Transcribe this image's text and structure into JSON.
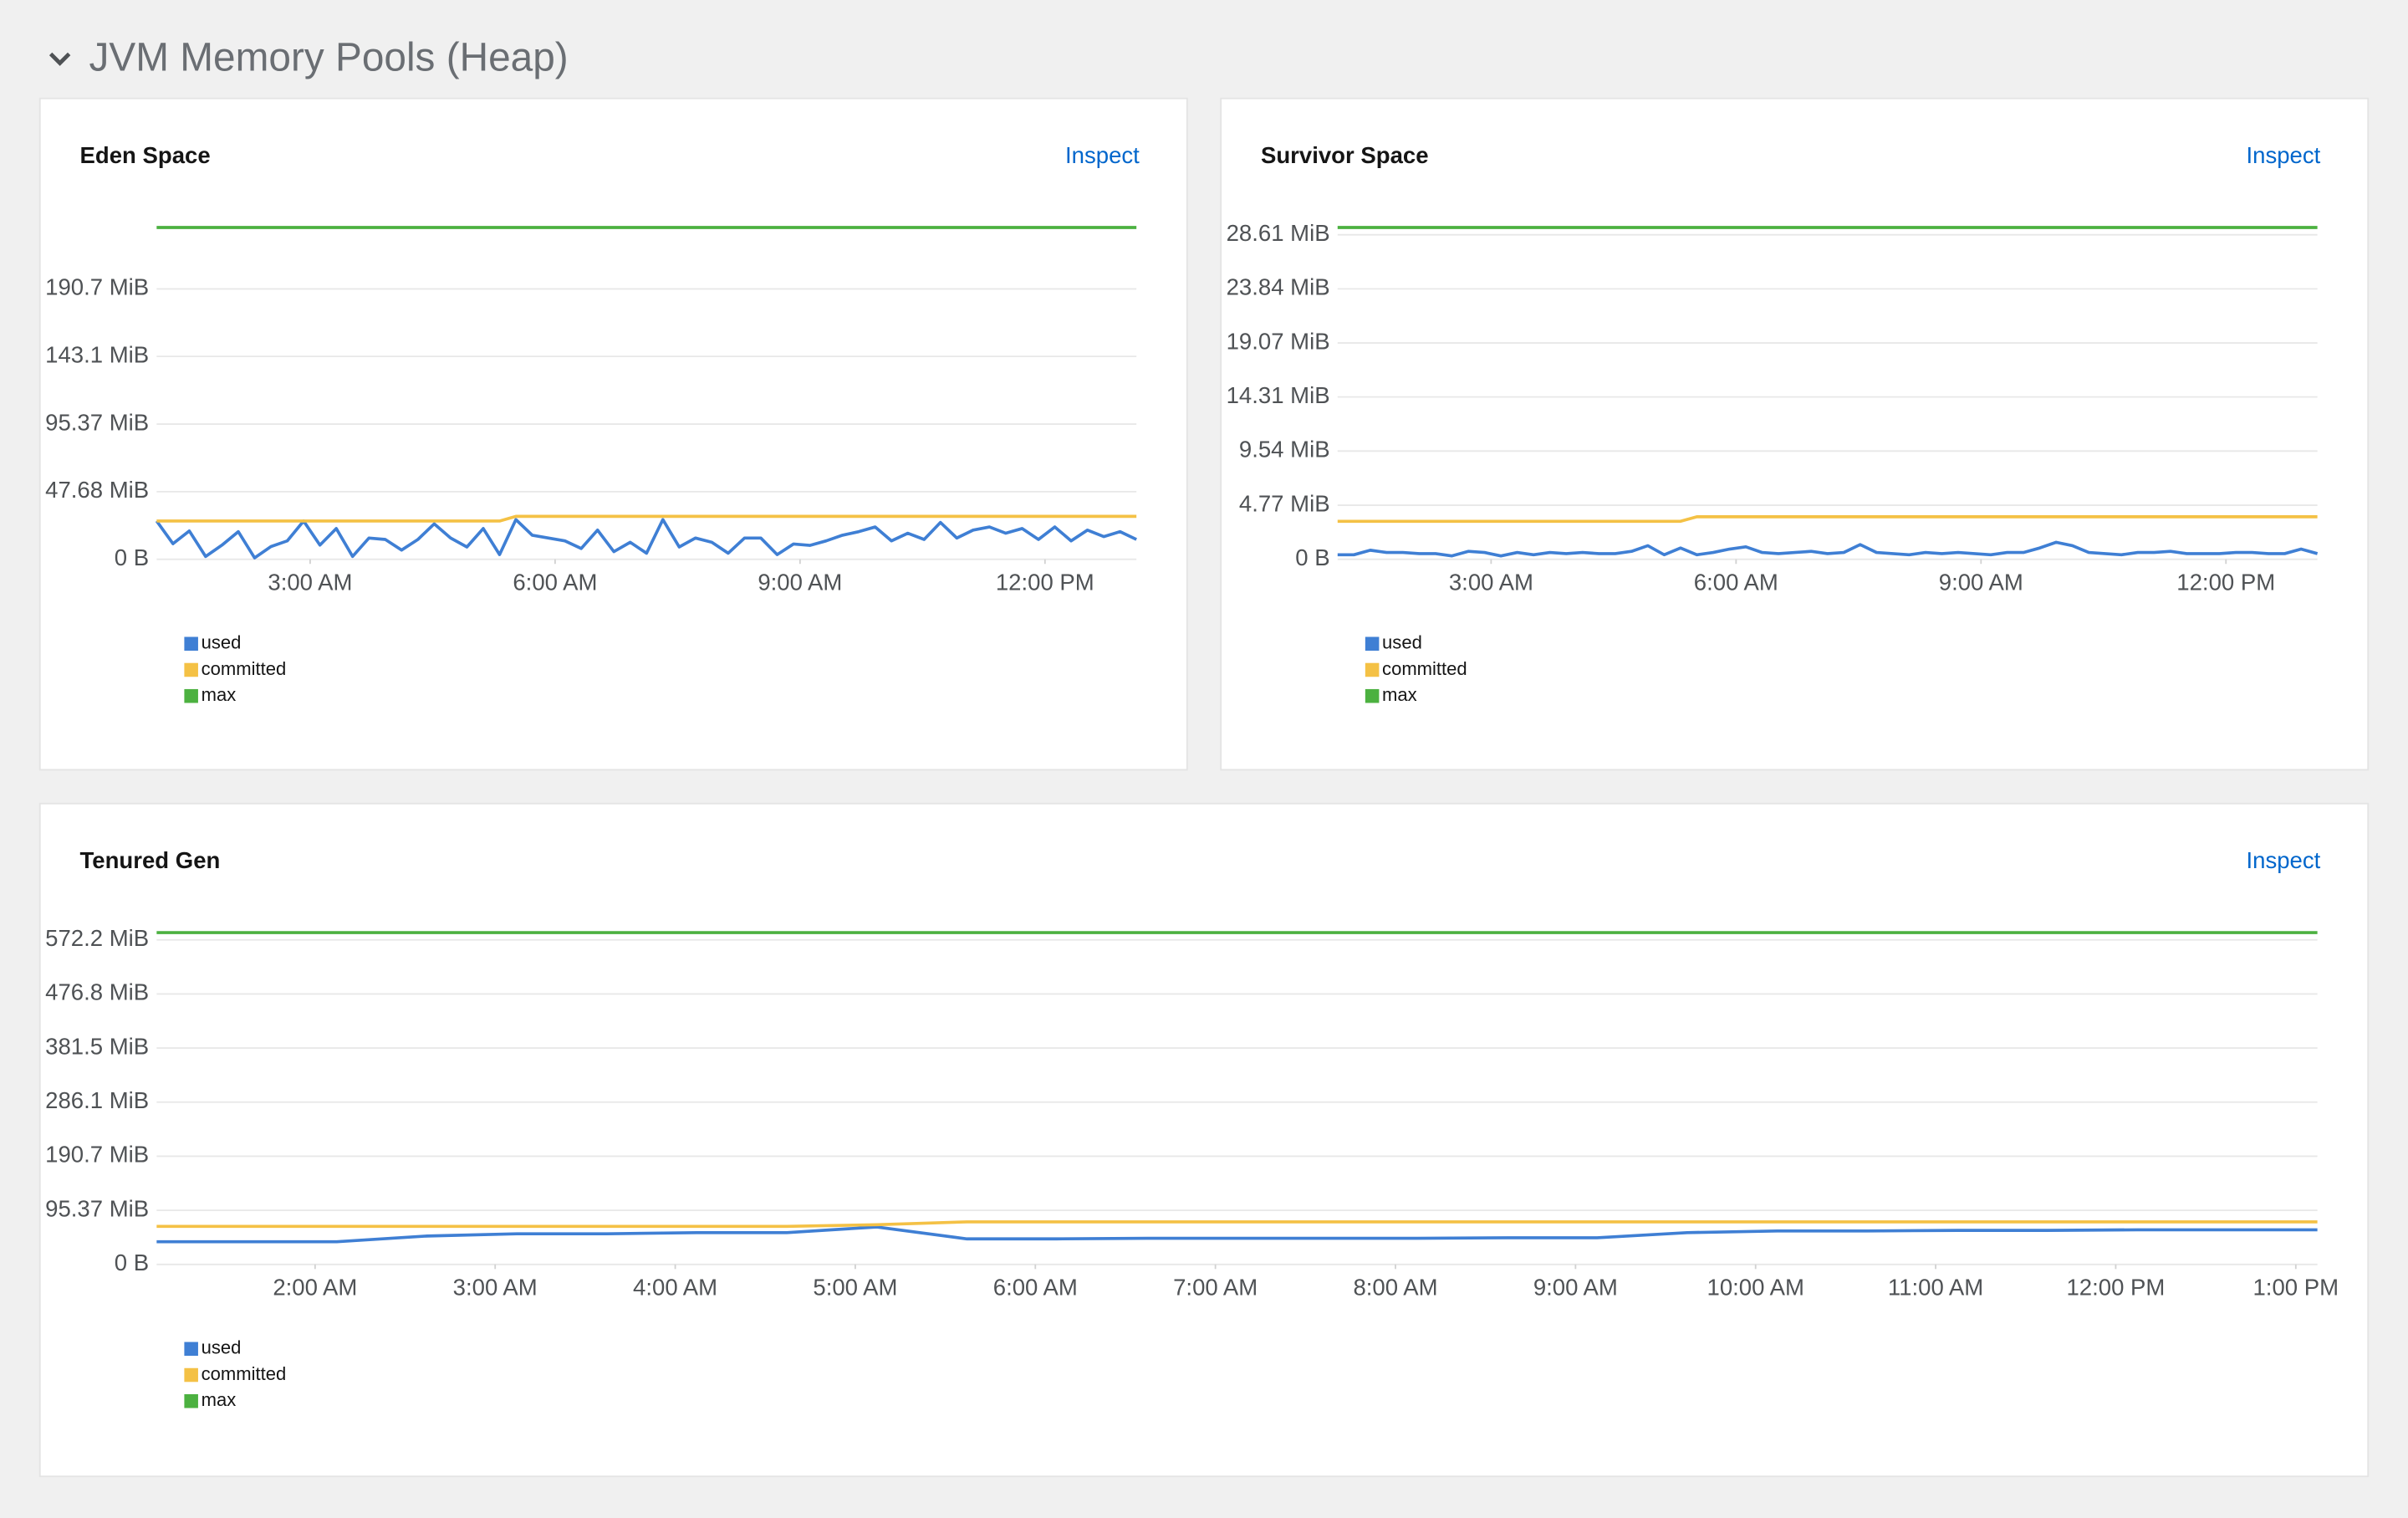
{
  "header": {
    "title": "JVM Memory Pools (Heap)"
  },
  "chart_data": [
    {
      "type": "line",
      "title": "Eden Space",
      "action": "Inspect",
      "x": [
        1.12,
        1.32,
        1.52,
        1.72,
        1.92,
        2.12,
        2.32,
        2.52,
        2.72,
        2.92,
        3.12,
        3.32,
        3.52,
        3.72,
        3.92,
        4.12,
        4.32,
        4.52,
        4.72,
        4.92,
        5.12,
        5.32,
        5.52,
        5.72,
        5.92,
        6.12,
        6.32,
        6.52,
        6.72,
        6.92,
        7.12,
        7.32,
        7.52,
        7.72,
        7.92,
        8.12,
        8.32,
        8.52,
        8.72,
        8.92,
        9.12,
        9.32,
        9.52,
        9.72,
        9.92,
        10.12,
        10.32,
        10.52,
        10.72,
        10.92,
        11.12,
        11.32,
        11.52,
        11.72,
        11.92,
        12.12,
        12.32,
        12.52,
        12.72,
        12.92,
        13.12
      ],
      "xlim": [
        1.12,
        13.12
      ],
      "xticks": [
        {
          "value": 3,
          "label": "3:00 AM"
        },
        {
          "value": 6,
          "label": "6:00 AM"
        },
        {
          "value": 9,
          "label": "9:00 AM"
        },
        {
          "value": 12,
          "label": "12:00 PM"
        }
      ],
      "ylim": [
        0,
        234
      ],
      "yticks": [
        {
          "value": 0,
          "label": "0 B"
        },
        {
          "value": 47.68,
          "label": "47.68 MiB"
        },
        {
          "value": 95.37,
          "label": "95.37 MiB"
        },
        {
          "value": 143.1,
          "label": "143.1 MiB"
        },
        {
          "value": 190.7,
          "label": "190.7 MiB"
        }
      ],
      "grid": true,
      "series": [
        {
          "name": "used",
          "color": "#3f7fd4",
          "values": [
            27,
            11,
            20,
            2,
            10,
            19.5,
            1,
            9,
            13,
            27,
            10,
            21.7,
            2,
            15,
            14,
            6.5,
            14,
            25,
            15,
            8.7,
            21.7,
            3.3,
            28,
            17,
            15,
            13,
            7.6,
            20.6,
            5.4,
            12,
            4.3,
            28,
            8.7,
            15,
            12,
            4.3,
            15,
            15,
            3.3,
            10.8,
            9.8,
            13,
            17,
            19.5,
            22.8,
            13,
            18.4,
            14,
            26,
            15,
            20.6,
            22.8,
            18.4,
            21.7,
            14,
            22.8,
            13,
            20.6,
            16,
            19.5,
            14
          ]
        },
        {
          "name": "committed",
          "color": "#f4c145",
          "values": [
            27,
            27,
            27,
            27,
            27,
            27,
            27,
            27,
            27,
            27,
            27,
            27,
            27,
            27,
            27,
            27,
            27,
            27,
            27,
            27,
            27,
            27,
            30.3,
            30.3,
            30.3,
            30.3,
            30.3,
            30.3,
            30.3,
            30.3,
            30.3,
            30.3,
            30.3,
            30.3,
            30.3,
            30.3,
            30.3,
            30.3,
            30.3,
            30.3,
            30.3,
            30.3,
            30.3,
            30.3,
            30.3,
            30.3,
            30.3,
            30.3,
            30.3,
            30.3,
            30.3,
            30.3,
            30.3,
            30.3,
            30.3,
            30.3,
            30.3,
            30.3,
            30.3,
            30.3,
            30.3
          ]
        },
        {
          "name": "max",
          "color": "#4cb140",
          "values": [
            234,
            234,
            234,
            234,
            234,
            234,
            234,
            234,
            234,
            234,
            234,
            234,
            234,
            234,
            234,
            234,
            234,
            234,
            234,
            234,
            234,
            234,
            234,
            234,
            234,
            234,
            234,
            234,
            234,
            234,
            234,
            234,
            234,
            234,
            234,
            234,
            234,
            234,
            234,
            234,
            234,
            234,
            234,
            234,
            234,
            234,
            234,
            234,
            234,
            234,
            234,
            234,
            234,
            234,
            234,
            234,
            234,
            234,
            234,
            234,
            234
          ]
        }
      ]
    },
    {
      "type": "line",
      "title": "Survivor Space",
      "action": "Inspect",
      "x": [
        1.12,
        1.32,
        1.52,
        1.72,
        1.92,
        2.12,
        2.32,
        2.52,
        2.72,
        2.92,
        3.12,
        3.32,
        3.52,
        3.72,
        3.92,
        4.12,
        4.32,
        4.52,
        4.72,
        4.92,
        5.12,
        5.32,
        5.52,
        5.72,
        5.92,
        6.12,
        6.32,
        6.52,
        6.72,
        6.92,
        7.12,
        7.32,
        7.52,
        7.72,
        7.92,
        8.12,
        8.32,
        8.52,
        8.72,
        8.92,
        9.12,
        9.32,
        9.52,
        9.72,
        9.92,
        10.12,
        10.32,
        10.52,
        10.72,
        10.92,
        11.12,
        11.32,
        11.52,
        11.72,
        11.92,
        12.12,
        12.32,
        12.52,
        12.72,
        12.92,
        13.12
      ],
      "xlim": [
        1.12,
        13.12
      ],
      "xticks": [
        {
          "value": 3,
          "label": "3:00 AM"
        },
        {
          "value": 6,
          "label": "6:00 AM"
        },
        {
          "value": 9,
          "label": "9:00 AM"
        },
        {
          "value": 12,
          "label": "12:00 PM"
        }
      ],
      "ylim": [
        0,
        29.25
      ],
      "yticks": [
        {
          "value": 0,
          "label": "0 B"
        },
        {
          "value": 4.77,
          "label": "4.77 MiB"
        },
        {
          "value": 9.54,
          "label": "9.54 MiB"
        },
        {
          "value": 14.31,
          "label": "14.31 MiB"
        },
        {
          "value": 19.07,
          "label": "19.07 MiB"
        },
        {
          "value": 23.84,
          "label": "23.84 MiB"
        },
        {
          "value": 28.61,
          "label": "28.61 MiB"
        }
      ],
      "grid": true,
      "series": [
        {
          "name": "used",
          "color": "#3f7fd4",
          "values": [
            0.4,
            0.4,
            0.8,
            0.6,
            0.6,
            0.5,
            0.5,
            0.3,
            0.7,
            0.6,
            0.3,
            0.6,
            0.4,
            0.6,
            0.5,
            0.6,
            0.5,
            0.5,
            0.7,
            1.2,
            0.4,
            1.0,
            0.4,
            0.6,
            0.9,
            1.1,
            0.6,
            0.5,
            0.6,
            0.7,
            0.5,
            0.6,
            1.3,
            0.6,
            0.5,
            0.4,
            0.6,
            0.5,
            0.6,
            0.5,
            0.4,
            0.6,
            0.6,
            1.0,
            1.5,
            1.2,
            0.6,
            0.5,
            0.4,
            0.6,
            0.6,
            0.7,
            0.5,
            0.5,
            0.5,
            0.6,
            0.6,
            0.5,
            0.5,
            0.9,
            0.5
          ]
        },
        {
          "name": "committed",
          "color": "#f4c145",
          "values": [
            3.35,
            3.35,
            3.35,
            3.35,
            3.35,
            3.35,
            3.35,
            3.35,
            3.35,
            3.35,
            3.35,
            3.35,
            3.35,
            3.35,
            3.35,
            3.35,
            3.35,
            3.35,
            3.35,
            3.35,
            3.35,
            3.35,
            3.75,
            3.75,
            3.75,
            3.75,
            3.75,
            3.75,
            3.75,
            3.75,
            3.75,
            3.75,
            3.75,
            3.75,
            3.75,
            3.75,
            3.75,
            3.75,
            3.75,
            3.75,
            3.75,
            3.75,
            3.75,
            3.75,
            3.75,
            3.75,
            3.75,
            3.75,
            3.75,
            3.75,
            3.75,
            3.75,
            3.75,
            3.75,
            3.75,
            3.75,
            3.75,
            3.75,
            3.75,
            3.75,
            3.75
          ]
        },
        {
          "name": "max",
          "color": "#4cb140",
          "values": [
            29.25,
            29.25,
            29.25,
            29.25,
            29.25,
            29.25,
            29.25,
            29.25,
            29.25,
            29.25,
            29.25,
            29.25,
            29.25,
            29.25,
            29.25,
            29.25,
            29.25,
            29.25,
            29.25,
            29.25,
            29.25,
            29.25,
            29.25,
            29.25,
            29.25,
            29.25,
            29.25,
            29.25,
            29.25,
            29.25,
            29.25,
            29.25,
            29.25,
            29.25,
            29.25,
            29.25,
            29.25,
            29.25,
            29.25,
            29.25,
            29.25,
            29.25,
            29.25,
            29.25,
            29.25,
            29.25,
            29.25,
            29.25,
            29.25,
            29.25,
            29.25,
            29.25,
            29.25,
            29.25,
            29.25,
            29.25,
            29.25,
            29.25,
            29.25,
            29.25,
            29.25
          ]
        }
      ]
    },
    {
      "type": "line",
      "title": "Tenured Gen",
      "action": "Inspect",
      "x": [
        1.12,
        1.62,
        2.12,
        2.62,
        3.12,
        3.62,
        4.12,
        4.62,
        5.12,
        5.62,
        6.12,
        6.62,
        7.12,
        7.62,
        8.12,
        8.62,
        9.12,
        9.62,
        10.12,
        10.62,
        11.12,
        11.62,
        12.12,
        12.62,
        13.12
      ],
      "xlim": [
        1.12,
        13.12
      ],
      "xticks": [
        {
          "value": 2,
          "label": "2:00 AM"
        },
        {
          "value": 3,
          "label": "3:00 AM"
        },
        {
          "value": 4,
          "label": "4:00 AM"
        },
        {
          "value": 5,
          "label": "5:00 AM"
        },
        {
          "value": 6,
          "label": "6:00 AM"
        },
        {
          "value": 7,
          "label": "7:00 AM"
        },
        {
          "value": 8,
          "label": "8:00 AM"
        },
        {
          "value": 9,
          "label": "9:00 AM"
        },
        {
          "value": 10,
          "label": "10:00 AM"
        },
        {
          "value": 11,
          "label": "11:00 AM"
        },
        {
          "value": 12,
          "label": "12:00 PM"
        },
        {
          "value": 13,
          "label": "1:00 PM"
        }
      ],
      "ylim": [
        0,
        585
      ],
      "yticks": [
        {
          "value": 0,
          "label": "0 B"
        },
        {
          "value": 95.37,
          "label": "95.37 MiB"
        },
        {
          "value": 190.7,
          "label": "190.7 MiB"
        },
        {
          "value": 286.1,
          "label": "286.1 MiB"
        },
        {
          "value": 381.5,
          "label": "381.5 MiB"
        },
        {
          "value": 476.8,
          "label": "476.8 MiB"
        },
        {
          "value": 572.2,
          "label": "572.2 MiB"
        }
      ],
      "grid": true,
      "series": [
        {
          "name": "used",
          "color": "#3f7fd4",
          "values": [
            40,
            40,
            40,
            50,
            54,
            54,
            56,
            56,
            66,
            45,
            45,
            46,
            46,
            46,
            46,
            47,
            47,
            56,
            59,
            59,
            60,
            60,
            61,
            61,
            61
          ]
        },
        {
          "name": "committed",
          "color": "#f4c145",
          "values": [
            67,
            67,
            67,
            67,
            67,
            67,
            67,
            67,
            70,
            75,
            75,
            75,
            75,
            75,
            75,
            75,
            75,
            75,
            75,
            75,
            75,
            75,
            75,
            75,
            75
          ]
        },
        {
          "name": "max",
          "color": "#4cb140",
          "values": [
            585,
            585,
            585,
            585,
            585,
            585,
            585,
            585,
            585,
            585,
            585,
            585,
            585,
            585,
            585,
            585,
            585,
            585,
            585,
            585,
            585,
            585,
            585,
            585,
            585
          ]
        }
      ]
    }
  ]
}
